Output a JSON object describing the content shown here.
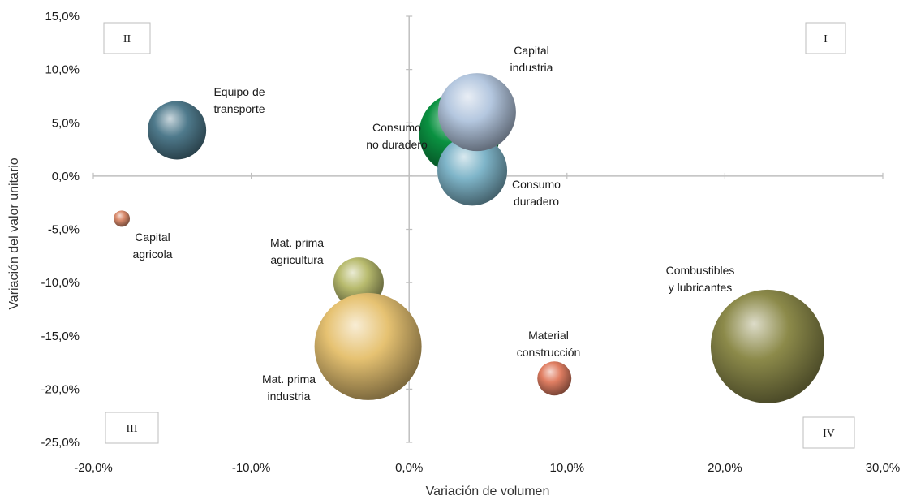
{
  "chart_data": {
    "type": "bubble",
    "xlabel": "Variación de volumen",
    "ylabel": "Variación del valor unitario",
    "xlim": [
      -20,
      30
    ],
    "ylim": [
      -25,
      15
    ],
    "x_ticks": [
      -20,
      -10,
      0,
      10,
      20,
      30
    ],
    "y_ticks": [
      -25,
      -20,
      -15,
      -10,
      -5,
      0,
      5,
      10,
      15
    ],
    "x_tick_labels": [
      "-20,0%",
      "-10,0%",
      "0,0%",
      "10,0%",
      "20,0%",
      "30,0%"
    ],
    "y_tick_labels": [
      "-25,0%",
      "-20,0%",
      "-15,0%",
      "-10,0%",
      "-5,0%",
      "0,0%",
      "5,0%",
      "10,0%",
      "15,0%"
    ],
    "grid": false,
    "quadrants": [
      "I",
      "II",
      "III",
      "IV"
    ],
    "series": [
      {
        "lines": [
          "Equipo de",
          "transporte"
        ],
        "x": -14.7,
        "y": 4.3,
        "size": 36,
        "color": "#4f7a8c"
      },
      {
        "lines": [
          "Capital",
          "agricola"
        ],
        "x": -18.2,
        "y": -4.0,
        "size": 10,
        "color": "#d98a6c"
      },
      {
        "lines": [
          "Consumo",
          "no duradero"
        ],
        "x": 3.2,
        "y": 4.0,
        "size": 50,
        "color": "#0a9141"
      },
      {
        "lines": [
          "Consumo",
          "duradero"
        ],
        "x": 4.0,
        "y": 0.5,
        "size": 43,
        "color": "#7fb5c9"
      },
      {
        "lines": [
          "Capital",
          "industria"
        ],
        "x": 4.3,
        "y": 6.0,
        "size": 48,
        "color": "#b4c7df"
      },
      {
        "lines": [
          "Mat. prima",
          "agricultura"
        ],
        "x": -3.2,
        "y": -10.0,
        "size": 31,
        "color": "#b8bb6e"
      },
      {
        "lines": [
          "Mat. prima",
          "industria"
        ],
        "x": -2.6,
        "y": -16.0,
        "size": 66,
        "color": "#e6c272"
      },
      {
        "lines": [
          "Material",
          "construcción"
        ],
        "x": 9.2,
        "y": -19.0,
        "size": 21,
        "color": "#e07e62"
      },
      {
        "lines": [
          "Combustibles",
          "y lubricantes"
        ],
        "x": 22.7,
        "y": -16.0,
        "size": 70,
        "color": "#8c8a4a"
      }
    ]
  }
}
